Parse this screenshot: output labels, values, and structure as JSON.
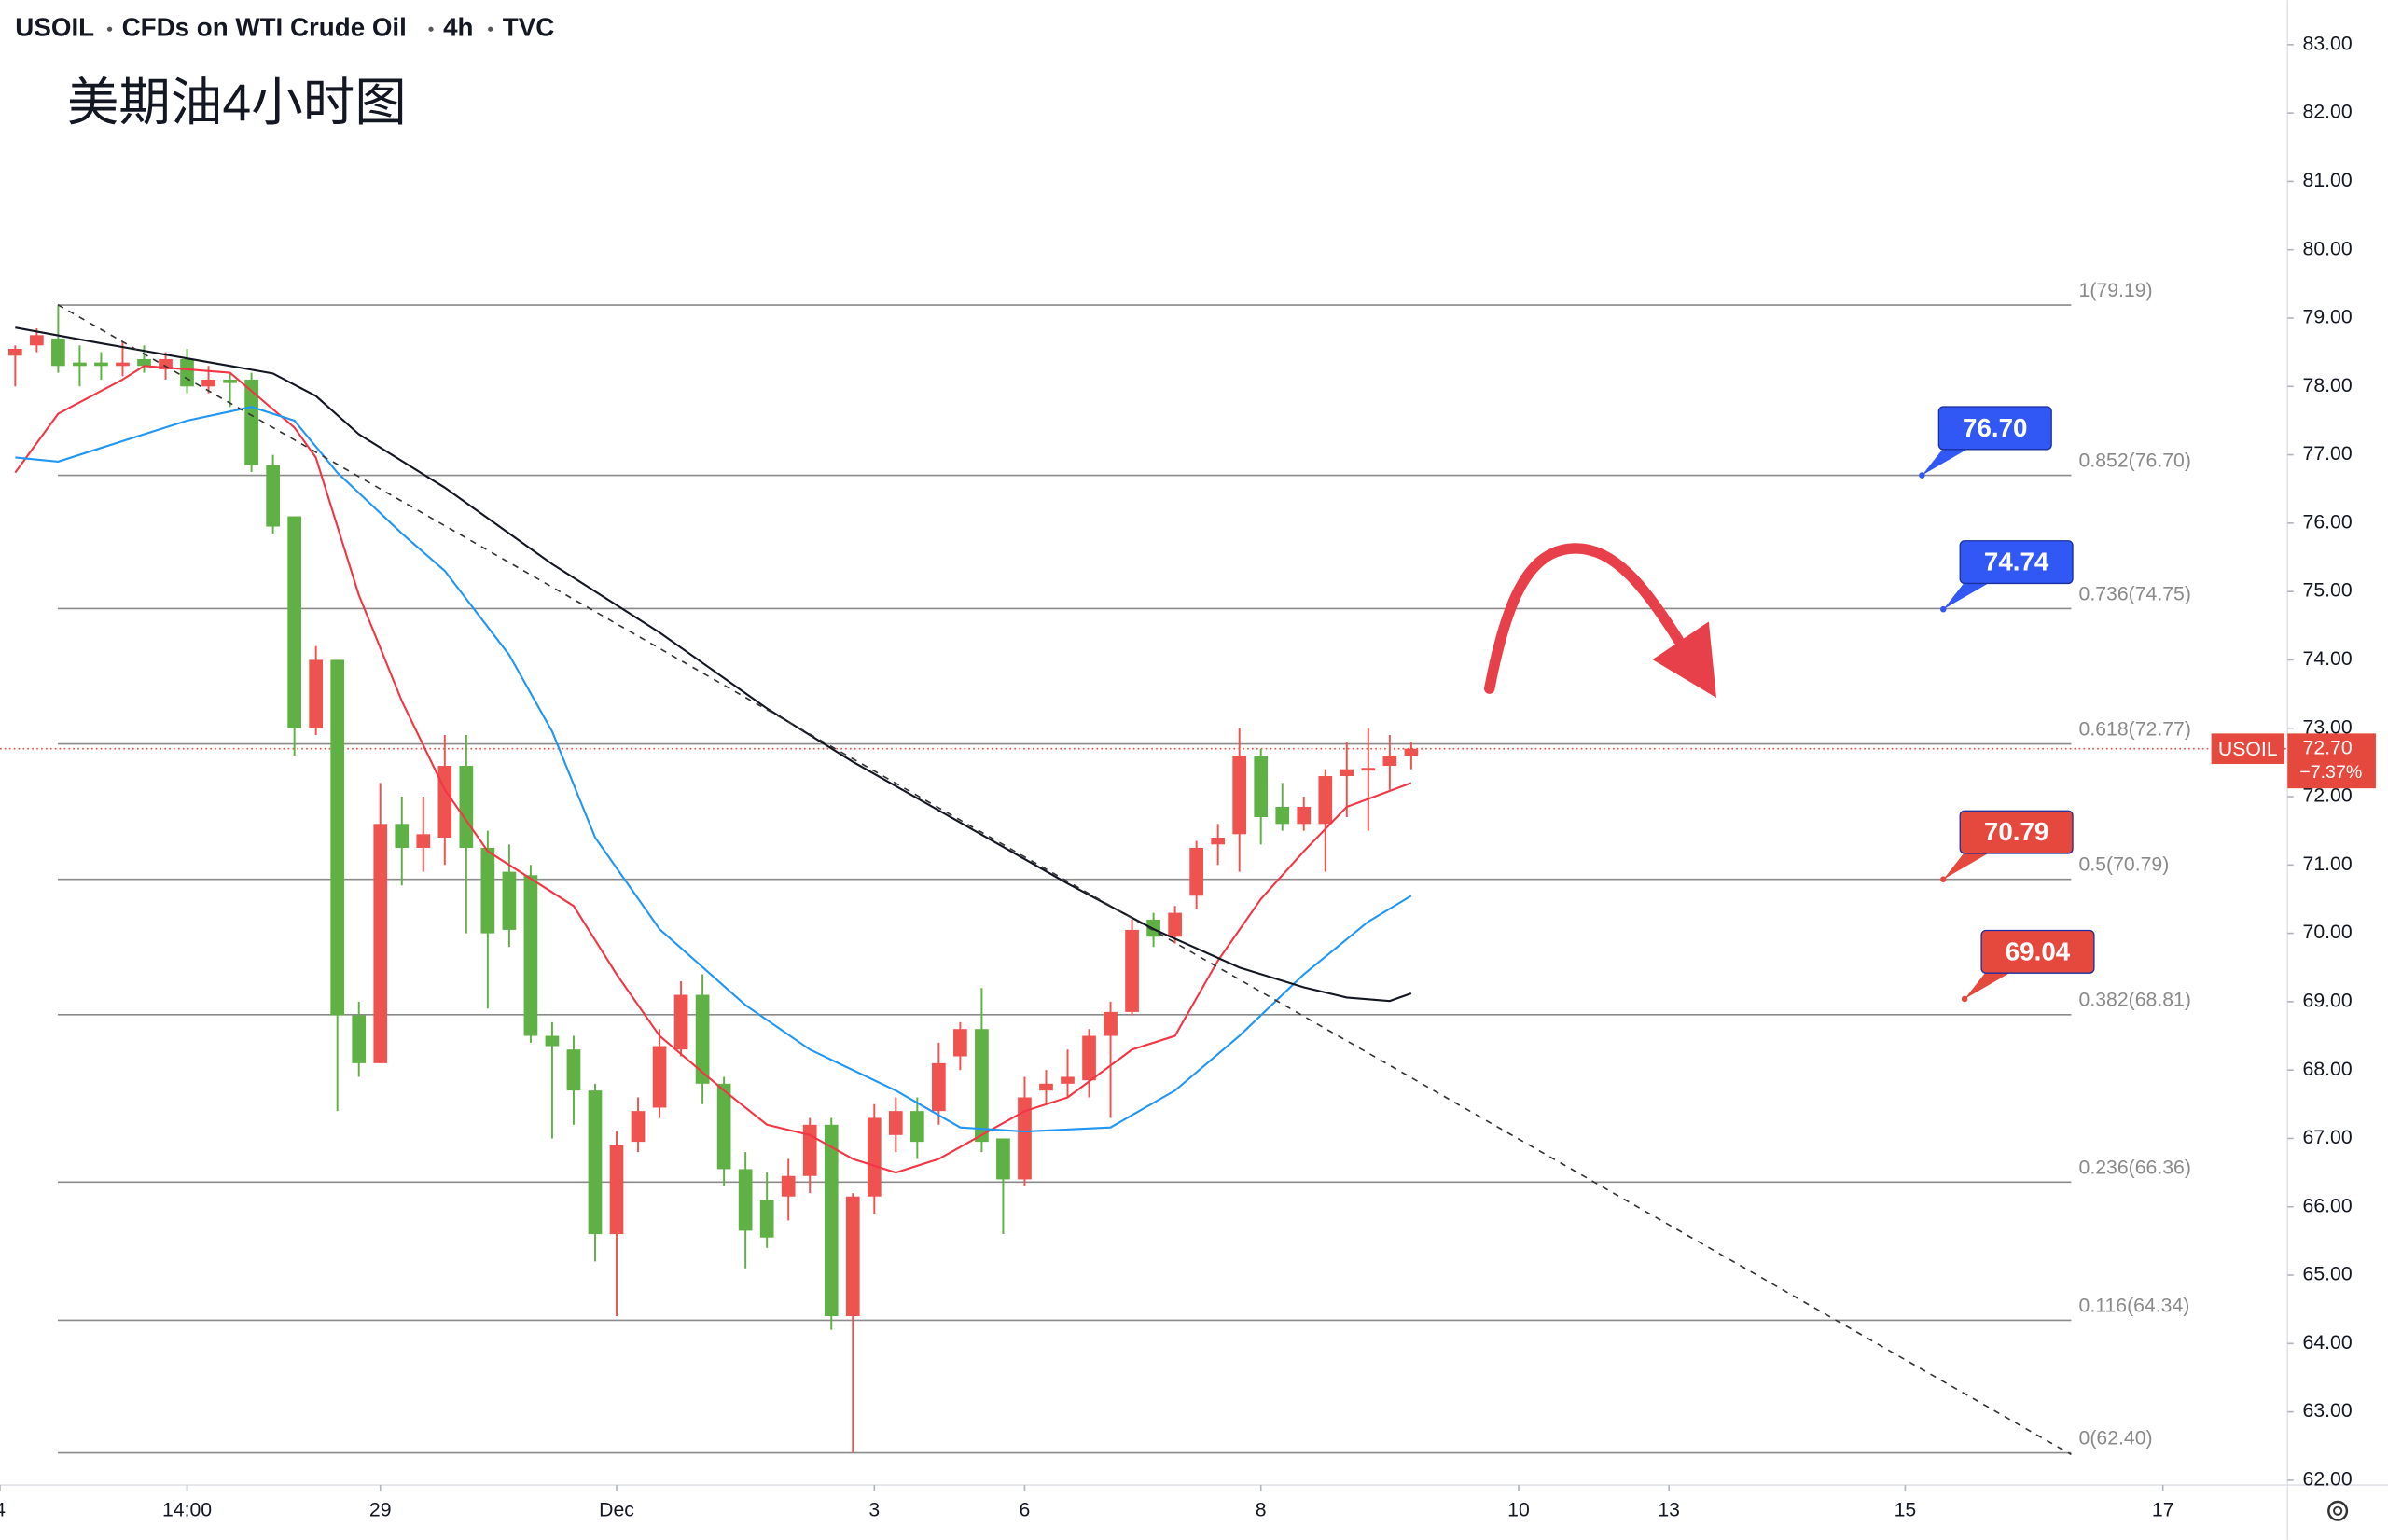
{
  "header": {
    "symbol": "USOIL",
    "description": "CFDs on WTI Crude Oil",
    "interval": "4h",
    "source": "TVC"
  },
  "chart_data": {
    "type": "candlestick",
    "title": "美期油4小时图",
    "up_color": "#ef5350",
    "down_color": "#5fb146",
    "open": [
      78.45,
      78.6,
      78.7,
      78.35,
      78.35,
      78.3,
      78.4,
      78.25,
      78.4,
      78.0,
      78.1,
      78.1,
      76.85,
      76.1,
      73.0,
      74.0,
      68.8,
      68.1,
      71.6,
      71.25,
      71.4,
      72.45,
      71.25,
      70.9,
      70.85,
      68.5,
      68.3,
      67.7,
      65.6,
      66.95,
      67.45,
      68.3,
      69.1,
      67.8,
      66.55,
      66.1,
      66.15,
      66.45,
      67.2,
      64.4,
      66.15,
      67.05,
      67.4,
      67.4,
      68.2,
      68.6,
      67.0,
      66.4,
      67.7,
      67.8,
      67.85,
      68.5,
      68.85,
      70.2,
      69.95,
      70.55,
      71.3,
      71.45,
      72.6,
      71.85,
      71.6,
      71.6,
      72.3,
      72.38,
      72.45,
      72.6
    ],
    "high": [
      78.6,
      78.85,
      79.19,
      78.6,
      78.5,
      78.65,
      78.6,
      78.5,
      78.55,
      78.3,
      78.2,
      78.2,
      77.0,
      76.1,
      74.2,
      74.0,
      69.0,
      72.2,
      72.0,
      72.0,
      72.9,
      72.9,
      71.5,
      71.3,
      71.0,
      68.7,
      68.5,
      67.8,
      67.1,
      67.6,
      68.6,
      69.3,
      69.4,
      67.9,
      66.8,
      66.5,
      66.7,
      67.3,
      67.3,
      66.2,
      67.5,
      67.6,
      67.6,
      68.4,
      68.7,
      69.2,
      67.0,
      67.9,
      68.0,
      68.3,
      68.6,
      69.0,
      70.2,
      70.3,
      70.4,
      71.35,
      71.6,
      73.0,
      72.7,
      72.2,
      72.0,
      72.4,
      72.8,
      73.0,
      72.9,
      72.8
    ],
    "low": [
      78.0,
      78.5,
      78.2,
      78.0,
      78.1,
      78.15,
      78.2,
      78.1,
      77.9,
      77.9,
      77.7,
      76.75,
      75.85,
      72.6,
      72.9,
      67.4,
      67.9,
      68.1,
      70.7,
      70.9,
      71.0,
      70.0,
      68.9,
      69.8,
      68.4,
      67.0,
      67.2,
      65.2,
      64.4,
      66.8,
      67.3,
      68.2,
      67.5,
      66.3,
      65.1,
      65.4,
      65.8,
      66.2,
      64.2,
      62.4,
      65.9,
      66.8,
      66.7,
      67.2,
      68.0,
      66.8,
      65.6,
      66.3,
      67.5,
      67.6,
      67.6,
      67.3,
      68.8,
      69.8,
      69.85,
      70.35,
      71.0,
      70.9,
      71.3,
      71.5,
      71.5,
      70.9,
      71.7,
      71.5,
      72.1,
      72.4
    ],
    "close": [
      78.55,
      78.75,
      78.3,
      78.3,
      78.3,
      78.35,
      78.3,
      78.4,
      78.0,
      78.1,
      78.05,
      76.85,
      75.95,
      73.0,
      74.0,
      68.8,
      68.1,
      71.6,
      71.25,
      71.45,
      72.45,
      71.25,
      70.0,
      70.05,
      68.5,
      68.35,
      67.7,
      65.6,
      66.9,
      67.4,
      68.35,
      69.1,
      67.8,
      66.55,
      65.65,
      65.55,
      66.45,
      67.2,
      64.4,
      66.15,
      67.3,
      67.4,
      66.95,
      68.1,
      68.6,
      66.95,
      66.4,
      67.6,
      67.8,
      67.9,
      68.5,
      68.85,
      70.05,
      69.95,
      70.3,
      71.25,
      71.4,
      72.6,
      71.7,
      71.6,
      71.85,
      72.3,
      72.4,
      72.42,
      72.6,
      72.7
    ],
    "series": [
      {
        "color": "#f23645",
        "x": [
          0,
          2,
          5,
          6,
          10,
          13,
          14,
          16,
          18,
          20,
          22,
          26,
          28,
          30,
          33,
          35,
          37,
          39,
          41,
          43,
          45,
          47,
          49,
          52,
          54,
          56,
          58,
          60,
          62,
          65
        ],
        "values": [
          76.74,
          77.6,
          78.1,
          78.3,
          78.2,
          77.4,
          76.96,
          74.95,
          73.4,
          72.1,
          71.2,
          70.4,
          69.4,
          68.5,
          67.7,
          67.2,
          67.05,
          66.7,
          66.5,
          66.7,
          67.05,
          67.4,
          67.6,
          68.3,
          68.5,
          69.6,
          70.5,
          71.2,
          71.85,
          72.2
        ]
      },
      {
        "color": "#2196f3",
        "x": [
          0,
          2,
          4,
          8,
          11,
          13,
          15,
          18,
          20,
          23,
          25,
          27,
          30,
          34,
          37,
          41,
          44,
          47,
          51,
          54,
          57,
          60,
          63,
          65
        ],
        "values": [
          76.96,
          76.9,
          77.1,
          77.5,
          77.7,
          77.5,
          76.74,
          75.85,
          75.3,
          74.07,
          72.95,
          71.4,
          70.06,
          68.95,
          68.3,
          67.7,
          67.16,
          67.1,
          67.16,
          67.7,
          68.5,
          69.4,
          70.17,
          70.55
        ]
      },
      {
        "color": "#131722",
        "x": [
          0,
          4,
          8,
          12,
          14,
          16,
          20,
          25,
          30,
          35,
          39,
          44,
          49,
          53,
          57,
          60,
          62,
          64,
          65
        ],
        "values": [
          78.86,
          78.63,
          78.41,
          78.19,
          77.86,
          77.3,
          76.52,
          75.4,
          74.4,
          73.29,
          72.51,
          71.62,
          70.73,
          70.06,
          69.5,
          69.21,
          69.06,
          69.01,
          69.12
        ]
      }
    ],
    "fib_levels": [
      {
        "value": 79.19,
        "label": "1(79.19)"
      },
      {
        "value": 76.7,
        "label": "0.852(76.70)"
      },
      {
        "value": 74.75,
        "label": "0.736(74.75)"
      },
      {
        "value": 72.77,
        "label": "0.618(72.77)"
      },
      {
        "value": 70.79,
        "label": "0.5(70.79)"
      },
      {
        "value": 68.81,
        "label": "0.382(68.81)"
      },
      {
        "value": 66.36,
        "label": "0.236(66.36)"
      },
      {
        "value": 64.34,
        "label": "0.116(64.34)"
      },
      {
        "value": 62.4,
        "label": "0(62.40)"
      }
    ],
    "annotations": [
      {
        "value": 76.7,
        "label": "76.70",
        "color": "#3158f5"
      },
      {
        "value": 74.74,
        "label": "74.74",
        "color": "#3158f5"
      },
      {
        "value": 70.79,
        "label": "70.79",
        "color": "#e5483d"
      },
      {
        "value": 69.04,
        "label": "69.04",
        "color": "#e5483d"
      }
    ],
    "last_price": {
      "name": "USOIL",
      "value": 72.7,
      "label": "72.70",
      "change": "−7.37%",
      "color": "#e5483d"
    },
    "xlim": [
      -0.71,
      105.8
    ],
    "xticks": [
      {
        "value": -0.71,
        "label": "4"
      },
      {
        "value": 8,
        "label": "14:00"
      },
      {
        "value": 17,
        "label": "29"
      },
      {
        "value": 28,
        "label": "Dec"
      },
      {
        "value": 40,
        "label": "3"
      },
      {
        "value": 47,
        "label": "6"
      },
      {
        "value": 58,
        "label": "8"
      },
      {
        "value": 70,
        "label": "10"
      },
      {
        "value": 77,
        "label": "13"
      },
      {
        "value": 88,
        "label": "15"
      },
      {
        "value": 100,
        "label": "17"
      }
    ],
    "ylim": [
      61.93,
      83.65
    ],
    "yticks": [
      {
        "value": 62,
        "label": "62.00"
      },
      {
        "value": 63,
        "label": "63.00"
      },
      {
        "value": 64,
        "label": "64.00"
      },
      {
        "value": 65,
        "label": "65.00"
      },
      {
        "value": 66,
        "label": "66.00"
      },
      {
        "value": 67,
        "label": "67.00"
      },
      {
        "value": 68,
        "label": "68.00"
      },
      {
        "value": 69,
        "label": "69.00"
      },
      {
        "value": 70,
        "label": "70.00"
      },
      {
        "value": 71,
        "label": "71.00"
      },
      {
        "value": 72,
        "label": "72.00"
      },
      {
        "value": 73,
        "label": "73.00"
      },
      {
        "value": 74,
        "label": "74.00"
      },
      {
        "value": 75,
        "label": "75.00"
      },
      {
        "value": 76,
        "label": "76.00"
      },
      {
        "value": 77,
        "label": "77.00"
      },
      {
        "value": 78,
        "label": "78.00"
      },
      {
        "value": 79,
        "label": "79.00"
      },
      {
        "value": 80,
        "label": "80.00"
      },
      {
        "value": 81,
        "label": "81.00"
      },
      {
        "value": 82,
        "label": "82.00"
      },
      {
        "value": 83,
        "label": "83.00"
      }
    ],
    "grid": false
  }
}
